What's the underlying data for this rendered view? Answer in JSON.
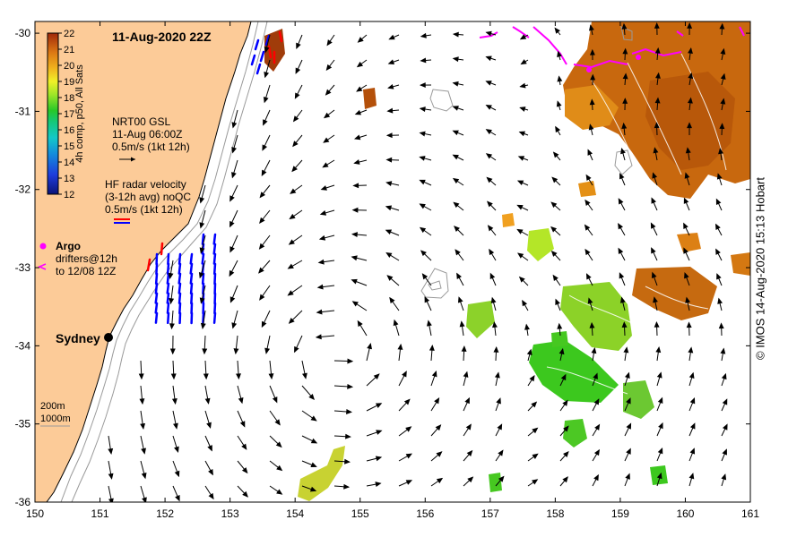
{
  "map": {
    "title": "11-Aug-2020 22Z",
    "lon_range": [
      150,
      161
    ],
    "lat_range": [
      -36,
      -29.85
    ],
    "x_ticks": [
      "150",
      "151",
      "152",
      "153",
      "154",
      "155",
      "156",
      "157",
      "158",
      "159",
      "160",
      "161"
    ],
    "y_ticks": [
      "-30",
      "-31",
      "-32",
      "-33",
      "-34",
      "-35",
      "-36"
    ],
    "colorbar": {
      "label": "4h comp, p50, All Sats",
      "ticks": [
        "22",
        "21",
        "20",
        "19",
        "18",
        "17",
        "16",
        "15",
        "14",
        "13",
        "12"
      ],
      "range": [
        12,
        22
      ]
    },
    "geostrophic": {
      "line1": "NRT00 GSL",
      "line2": "11-Aug 06:00Z",
      "line3": "0.5m/s (1kt 12h)"
    },
    "radar": {
      "line1": "HF radar velocity",
      "line2": "(3-12h avg) noQC",
      "line3": "0.5m/s (1kt 12h)"
    },
    "argo": {
      "label": "Argo",
      "drifter_line1": "drifters@12h",
      "drifter_line2": "to 12/08 12Z"
    },
    "city": {
      "name": "Sydney",
      "lon": 151.2,
      "lat": -33.87
    },
    "isobaths": {
      "shallow": "200m",
      "deep": "1000m"
    },
    "credit": "© IMOS 14-Aug-2020 15:13 Hobart",
    "colors": {
      "land": "#fccb98",
      "ocean": "#ffffff",
      "argo": "#ff00ff",
      "radar_blue": "#0000ff",
      "radar_red": "#ff0000",
      "isobath": "#9a9a9a",
      "sst_warm": "#c8640a",
      "sst_green": "#3cc81e"
    }
  }
}
